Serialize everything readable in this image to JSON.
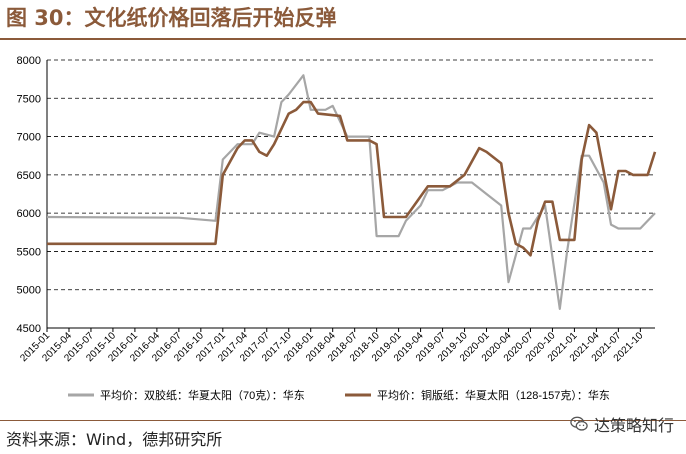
{
  "header": {
    "title": "图 30：文化纸价格回落后开始反弹"
  },
  "footer": {
    "source": "资料来源：Wind，德邦研究所",
    "watermark": "达策略知行",
    "watermark_icon": "wechat-icon"
  },
  "colors": {
    "accent": "#8b5a3a",
    "gray_series": "#a6a6a6",
    "brown_series": "#8b5a3a"
  },
  "chart_data": {
    "type": "line",
    "title": "",
    "xlabel": "",
    "ylabel": "",
    "ylim": [
      4500,
      8000
    ],
    "yticks": [
      4500,
      5000,
      5500,
      6000,
      6500,
      7000,
      7500,
      8000
    ],
    "grid": "horizontal-dashed",
    "legend_placement": "bottom",
    "xticks": [
      "2015-01",
      "2015-04",
      "2015-07",
      "2015-10",
      "2016-01",
      "2016-04",
      "2016-07",
      "2016-10",
      "2017-01",
      "2017-04",
      "2017-07",
      "2017-10",
      "2018-01",
      "2018-04",
      "2018-07",
      "2018-10",
      "2019-01",
      "2019-04",
      "2019-07",
      "2019-10",
      "2020-01",
      "2020-04",
      "2020-07",
      "2020-10",
      "2021-01",
      "2021-04",
      "2021-07",
      "2021-10"
    ],
    "series": [
      {
        "name": "平均价：双胶纸：华夏太阳（70克）：华东",
        "color": "#a6a6a6",
        "points": [
          [
            "2015-01",
            5950
          ],
          [
            "2016-07",
            5940
          ],
          [
            "2016-12",
            5900
          ],
          [
            "2017-01",
            6700
          ],
          [
            "2017-03",
            6900
          ],
          [
            "2017-05",
            6900
          ],
          [
            "2017-06",
            7050
          ],
          [
            "2017-08",
            7000
          ],
          [
            "2017-09",
            7450
          ],
          [
            "2017-10",
            7550
          ],
          [
            "2017-12",
            7800
          ],
          [
            "2018-01",
            7350
          ],
          [
            "2018-03",
            7350
          ],
          [
            "2018-04",
            7400
          ],
          [
            "2018-06",
            7000
          ],
          [
            "2018-09",
            7000
          ],
          [
            "2018-10",
            5700
          ],
          [
            "2019-01",
            5700
          ],
          [
            "2019-02",
            5900
          ],
          [
            "2019-04",
            6100
          ],
          [
            "2019-05",
            6300
          ],
          [
            "2019-07",
            6300
          ],
          [
            "2019-09",
            6400
          ],
          [
            "2019-11",
            6400
          ],
          [
            "2020-01",
            6250
          ],
          [
            "2020-03",
            6100
          ],
          [
            "2020-04",
            5100
          ],
          [
            "2020-05",
            5450
          ],
          [
            "2020-06",
            5800
          ],
          [
            "2020-07",
            5800
          ],
          [
            "2020-09",
            6100
          ],
          [
            "2020-11",
            4750
          ],
          [
            "2020-12",
            5500
          ],
          [
            "2021-02",
            6750
          ],
          [
            "2021-03",
            6750
          ],
          [
            "2021-05",
            6400
          ],
          [
            "2021-06",
            5850
          ],
          [
            "2021-07",
            5800
          ],
          [
            "2021-10",
            5800
          ],
          [
            "2021-12",
            6000
          ]
        ]
      },
      {
        "name": "平均价：铜版纸：华夏太阳（128-157克）：华东",
        "color": "#8b5a3a",
        "points": [
          [
            "2015-01",
            5600
          ],
          [
            "2016-12",
            5600
          ],
          [
            "2017-01",
            6500
          ],
          [
            "2017-03",
            6850
          ],
          [
            "2017-04",
            6950
          ],
          [
            "2017-05",
            6950
          ],
          [
            "2017-06",
            6800
          ],
          [
            "2017-07",
            6750
          ],
          [
            "2017-08",
            6900
          ],
          [
            "2017-10",
            7300
          ],
          [
            "2017-11",
            7350
          ],
          [
            "2017-12",
            7450
          ],
          [
            "2018-01",
            7450
          ],
          [
            "2018-02",
            7300
          ],
          [
            "2018-05",
            7270
          ],
          [
            "2018-06",
            6950
          ],
          [
            "2018-08",
            6950
          ],
          [
            "2018-09",
            6950
          ],
          [
            "2018-10",
            6900
          ],
          [
            "2018-11",
            5950
          ],
          [
            "2019-02",
            5950
          ],
          [
            "2019-05",
            6350
          ],
          [
            "2019-08",
            6350
          ],
          [
            "2019-10",
            6500
          ],
          [
            "2019-12",
            6850
          ],
          [
            "2020-01",
            6800
          ],
          [
            "2020-03",
            6650
          ],
          [
            "2020-04",
            6000
          ],
          [
            "2020-05",
            5600
          ],
          [
            "2020-06",
            5550
          ],
          [
            "2020-07",
            5450
          ],
          [
            "2020-08",
            5900
          ],
          [
            "2020-09",
            6150
          ],
          [
            "2020-10",
            6150
          ],
          [
            "2020-11",
            5650
          ],
          [
            "2021-01",
            5650
          ],
          [
            "2021-02",
            6700
          ],
          [
            "2021-03",
            7150
          ],
          [
            "2021-04",
            7050
          ],
          [
            "2021-06",
            6050
          ],
          [
            "2021-07",
            6550
          ],
          [
            "2021-08",
            6550
          ],
          [
            "2021-09",
            6500
          ],
          [
            "2021-11",
            6500
          ],
          [
            "2021-12",
            6800
          ]
        ]
      }
    ]
  }
}
